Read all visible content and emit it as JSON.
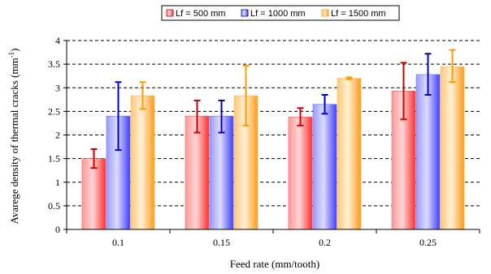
{
  "chart_data": {
    "type": "bar",
    "categories": [
      "0.1",
      "0.15",
      "0.2",
      "0.25"
    ],
    "series": [
      {
        "name": "Lf = 500 mm",
        "values": [
          1.5,
          2.4,
          2.38,
          2.93
        ],
        "error_low": [
          1.3,
          2.05,
          2.2,
          2.33
        ],
        "error_high": [
          1.7,
          2.73,
          2.57,
          3.53
        ],
        "color": "#ff5a5a",
        "error_color": "#cc0000"
      },
      {
        "name": "Lf = 1000 mm",
        "values": [
          2.4,
          2.4,
          2.65,
          3.28
        ],
        "error_low": [
          1.68,
          2.05,
          2.45,
          2.85
        ],
        "error_high": [
          3.12,
          2.73,
          2.85,
          3.72
        ],
        "color": "#7070ff",
        "error_color": "#0000cc"
      },
      {
        "name": "Lf = 1500 mm",
        "values": [
          2.83,
          2.83,
          3.2,
          3.45
        ],
        "error_low": [
          2.55,
          2.2,
          3.18,
          3.12
        ],
        "error_high": [
          3.12,
          3.47,
          3.22,
          3.8
        ],
        "color": "#ffb64d",
        "error_color": "#ff9900"
      }
    ],
    "xlabel": "Feed rate (mm/tooth)",
    "ylabel_main": "Avarege density of thermal cracks (mm",
    "ylabel_sup": "-1",
    "ylabel_end": ")",
    "ylim": [
      0,
      4
    ],
    "yticks": [
      "0",
      "0.5",
      "1",
      "1.5",
      "2",
      "2.5",
      "3",
      "3.5",
      "4"
    ],
    "grid": "horizontal dashed",
    "legend_position": "top"
  }
}
